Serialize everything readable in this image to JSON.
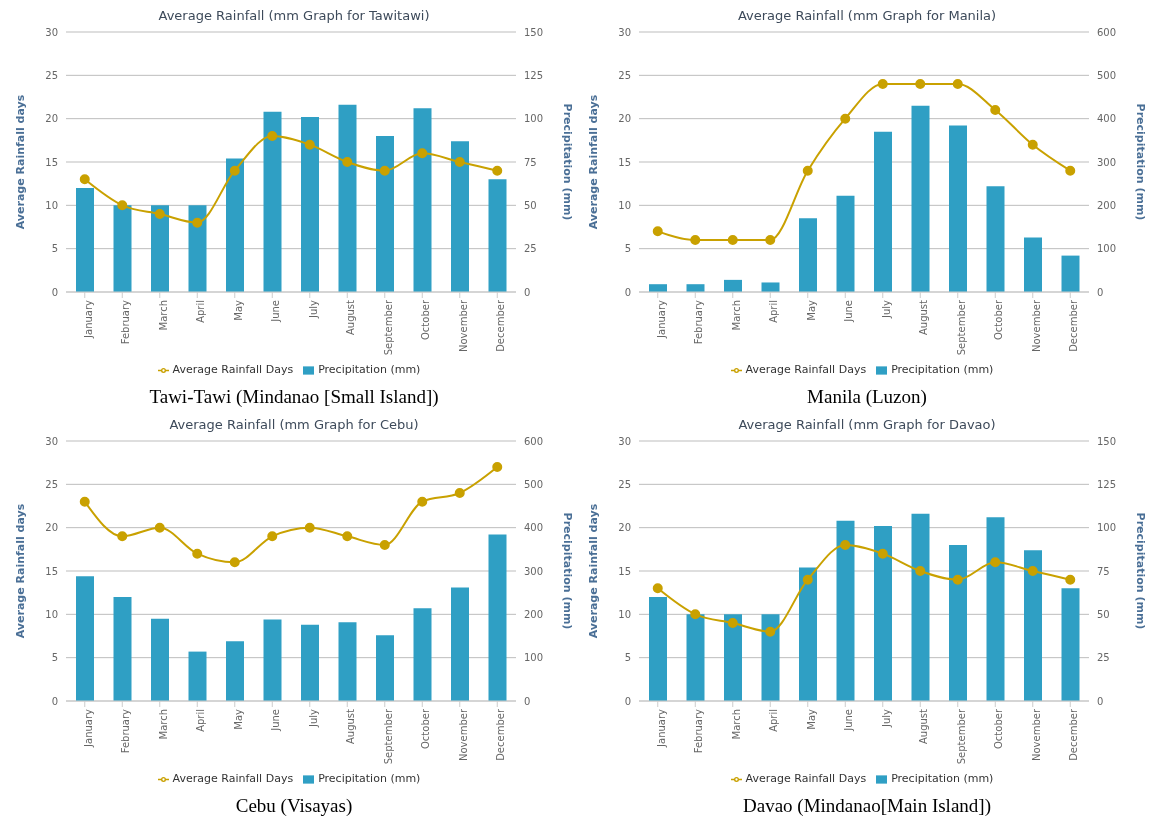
{
  "chart_data": [
    {
      "type": "bar",
      "title": "Average Rainfall (mm Graph for Tawitawi)",
      "ylabel": "Average Rainfall days",
      "y2label": "Precipitation (mm)",
      "categories": [
        "January",
        "February",
        "March",
        "April",
        "May",
        "June",
        "July",
        "August",
        "September",
        "October",
        "November",
        "December"
      ],
      "series": [
        {
          "name": "Precipitation (mm)",
          "color": "#2f9fc4",
          "axis": "y2",
          "values": [
            60,
            50,
            50,
            50,
            77,
            104,
            101,
            108,
            90,
            106,
            87,
            65
          ]
        },
        {
          "name": "Average Rainfall Days",
          "type": "line",
          "color": "#c9a100",
          "values": [
            13,
            10,
            9,
            8,
            14,
            18,
            17,
            15,
            14,
            16,
            15,
            14
          ]
        }
      ],
      "ylim": [
        0,
        30
      ],
      "yticks": [
        0,
        5,
        10,
        15,
        20,
        25,
        30
      ],
      "y2lim": [
        0,
        150
      ],
      "y2ticks": [
        0,
        25,
        50,
        75,
        100,
        125,
        150
      ],
      "grid": "y",
      "legend": "bottom",
      "marker": "circle",
      "annotations": [
        "Tawi-Tawi (Mindanao [Small Island])"
      ]
    },
    {
      "type": "bar",
      "title": "Average Rainfall (mm Graph for Manila)",
      "ylabel": "Average Rainfall days",
      "y2label": "Precipitation (mm)",
      "categories": [
        "January",
        "February",
        "March",
        "April",
        "May",
        "June",
        "July",
        "August",
        "September",
        "October",
        "November",
        "December"
      ],
      "series": [
        {
          "name": "Precipitation (mm)",
          "color": "#2f9fc4",
          "axis": "y2",
          "values": [
            18,
            18,
            28,
            22,
            170,
            222,
            370,
            430,
            384,
            244,
            126,
            84
          ]
        },
        {
          "name": "Average Rainfall Days",
          "type": "line",
          "color": "#c9a100",
          "values": [
            7,
            6,
            6,
            6,
            14,
            20,
            24,
            24,
            24,
            21,
            17,
            14
          ]
        }
      ],
      "ylim": [
        0,
        30
      ],
      "yticks": [
        0,
        5,
        10,
        15,
        20,
        25,
        30
      ],
      "y2lim": [
        0,
        600
      ],
      "y2ticks": [
        0,
        100,
        200,
        300,
        400,
        500,
        600
      ],
      "grid": "y",
      "legend": "bottom",
      "marker": "circle",
      "annotations": [
        "Manila (Luzon)"
      ]
    },
    {
      "type": "bar",
      "title": "Average Rainfall (mm Graph for Cebu)",
      "ylabel": "Average Rainfall days",
      "y2label": "Precipitation (mm)",
      "categories": [
        "January",
        "February",
        "March",
        "April",
        "May",
        "June",
        "July",
        "August",
        "September",
        "October",
        "November",
        "December"
      ],
      "series": [
        {
          "name": "Precipitation (mm)",
          "color": "#2f9fc4",
          "axis": "y2",
          "values": [
            288,
            240,
            190,
            114,
            138,
            188,
            176,
            182,
            152,
            214,
            262,
            384
          ]
        },
        {
          "name": "Average Rainfall Days",
          "type": "line",
          "color": "#c9a100",
          "values": [
            23,
            19,
            20,
            17,
            16,
            19,
            20,
            19,
            18,
            23,
            24,
            27
          ]
        }
      ],
      "ylim": [
        0,
        30
      ],
      "yticks": [
        0,
        5,
        10,
        15,
        20,
        25,
        30
      ],
      "y2lim": [
        0,
        600
      ],
      "y2ticks": [
        0,
        100,
        200,
        300,
        400,
        500,
        600
      ],
      "grid": "y",
      "legend": "bottom",
      "marker": "circle",
      "annotations": [
        "Cebu (Visayas)"
      ]
    },
    {
      "type": "bar",
      "title": "Average Rainfall (mm Graph for Davao)",
      "ylabel": "Average Rainfall days",
      "y2label": "Precipitation (mm)",
      "categories": [
        "January",
        "February",
        "March",
        "April",
        "May",
        "June",
        "July",
        "August",
        "September",
        "October",
        "November",
        "December"
      ],
      "series": [
        {
          "name": "Precipitation (mm)",
          "color": "#2f9fc4",
          "axis": "y2",
          "values": [
            60,
            50,
            50,
            50,
            77,
            104,
            101,
            108,
            90,
            106,
            87,
            65
          ]
        },
        {
          "name": "Average Rainfall Days",
          "type": "line",
          "color": "#c9a100",
          "values": [
            13,
            10,
            9,
            8,
            14,
            18,
            17,
            15,
            14,
            16,
            15,
            14
          ]
        }
      ],
      "ylim": [
        0,
        30
      ],
      "yticks": [
        0,
        5,
        10,
        15,
        20,
        25,
        30
      ],
      "y2lim": [
        0,
        150
      ],
      "y2ticks": [
        0,
        25,
        50,
        75,
        100,
        125,
        150
      ],
      "grid": "y",
      "legend": "bottom",
      "marker": "circle",
      "annotations": [
        "Davao (Mindanao[Main Island])"
      ]
    }
  ]
}
